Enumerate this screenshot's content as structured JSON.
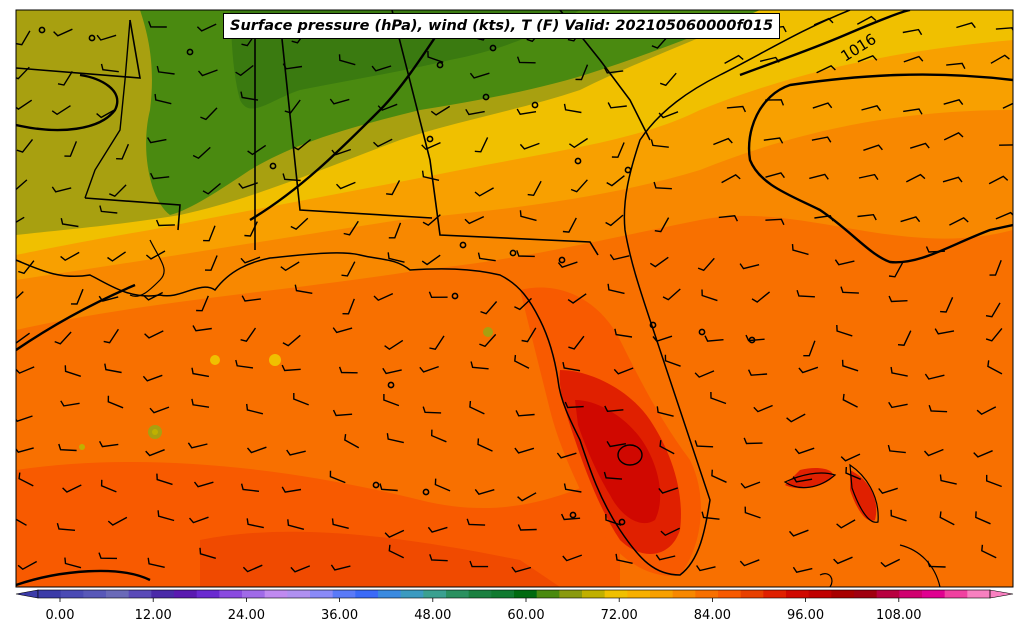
{
  "title": "Surface pressure (hPa), wind (kts), T (F) Valid: 202105060000f015",
  "isobar_labels": [
    "1016"
  ],
  "colorbar": {
    "tick_labels": [
      "0.00",
      "12.00",
      "24.00",
      "36.00",
      "48.00",
      "60.00",
      "72.00",
      "84.00",
      "96.00",
      "108.00"
    ],
    "colors": [
      "#3b3ba8",
      "#4a4ab4",
      "#5858b8",
      "#6a6ab8",
      "#5a4ab8",
      "#4a2aa8",
      "#5a1ab0",
      "#6a2ad0",
      "#8a4ae0",
      "#a06ae8",
      "#c08af0",
      "#b090f0",
      "#8a8af8",
      "#5a7af8",
      "#3a6af8",
      "#3a8ae0",
      "#3a9ac0",
      "#3aa090",
      "#2a9060",
      "#1a8040",
      "#107a30",
      "#006a10",
      "#4a8a10",
      "#8a9a10",
      "#c0b000",
      "#f0c000",
      "#f8b000",
      "#f8a000",
      "#f88800",
      "#f87000",
      "#f85a00",
      "#e84000",
      "#e02000",
      "#d00800",
      "#c00000",
      "#a80000",
      "#a00010",
      "#b80040",
      "#d00070",
      "#e00090",
      "#f040a0",
      "#f880c0"
    ]
  }
}
